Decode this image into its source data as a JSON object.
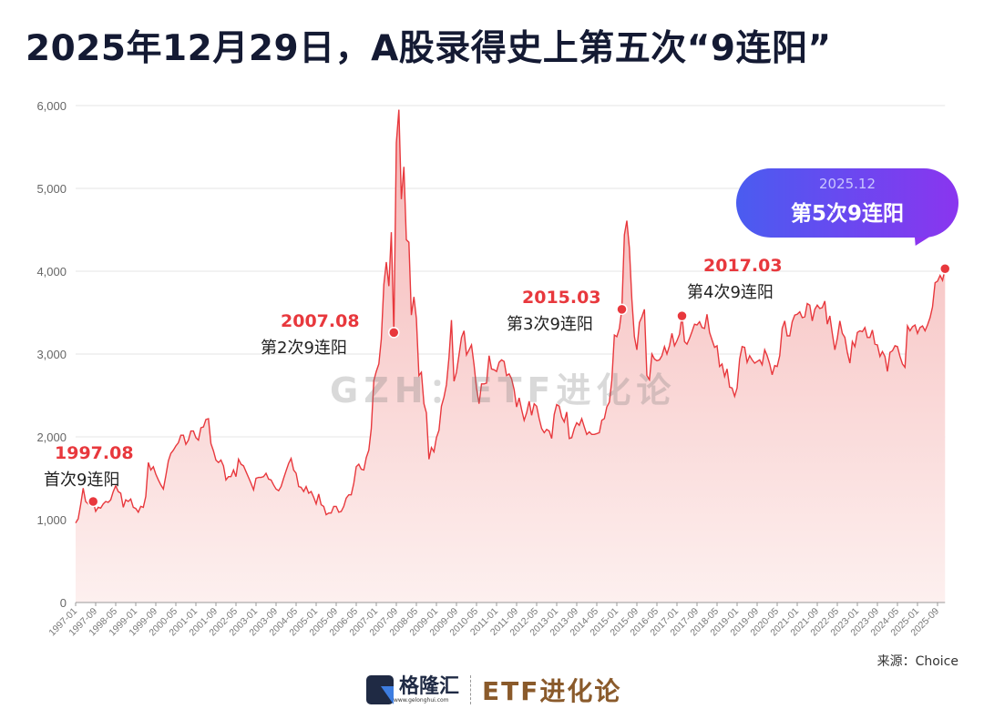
{
  "title": "2025年12月29日，A股录得史上第五次“9连阳”",
  "watermark": "GZH：ETF进化论",
  "source": "来源：Choice",
  "logo": {
    "name": "格隆汇",
    "url": "www.gelonghui.com",
    "brand": "ETF进化论"
  },
  "colors": {
    "line": "#e8383d",
    "area_top": "#f5b5b5",
    "area_bottom": "#fdf0ef",
    "title": "#141a33",
    "bubble_start": "#4a5cf0",
    "bubble_end": "#8a35ef",
    "brand": "#8a5a2b"
  },
  "chart_data": {
    "type": "area",
    "title": "2025年12月29日，A股录得史上第五次“9连阳”",
    "xlabel": "",
    "ylabel": "",
    "ylim": [
      0,
      6000
    ],
    "yticks": [
      "0",
      "1,000",
      "2,000",
      "3,000",
      "4,000",
      "5,000",
      "6,000"
    ],
    "grid": true,
    "x_start": "1997-01",
    "x_end": "2025-12",
    "x_frequency": "monthly",
    "xticks": [
      "1997-01",
      "1997-09",
      "1998-05",
      "1999-01",
      "1999-09",
      "2000-05",
      "2001-01",
      "2001-09",
      "2002-05",
      "2003-01",
      "2003-09",
      "2004-05",
      "2005-01",
      "2005-09",
      "2006-05",
      "2007-01",
      "2007-09",
      "2008-05",
      "2009-01",
      "2009-09",
      "2010-05",
      "2011-01",
      "2011-09",
      "2012-05",
      "2013-01",
      "2013-09",
      "2014-05",
      "2015-01",
      "2015-09",
      "2016-05",
      "2017-01",
      "2017-09",
      "2018-05",
      "2019-01",
      "2019-09",
      "2020-05",
      "2021-01",
      "2021-09",
      "2022-05",
      "2023-01",
      "2023-09",
      "2024-05",
      "2025-01",
      "2025-09"
    ],
    "values": [
      960,
      1010,
      1180,
      1380,
      1220,
      1190,
      1170,
      1220,
      1100,
      1150,
      1140,
      1190,
      1220,
      1210,
      1240,
      1340,
      1410,
      1340,
      1320,
      1150,
      1240,
      1220,
      1250,
      1150,
      1135,
      1090,
      1160,
      1150,
      1280,
      1690,
      1600,
      1640,
      1550,
      1480,
      1420,
      1370,
      1530,
      1710,
      1800,
      1840,
      1890,
      1930,
      2020,
      2020,
      1910,
      1960,
      2070,
      2070,
      1990,
      1960,
      2110,
      2120,
      2210,
      2220,
      1920,
      1830,
      1720,
      1690,
      1720,
      1650,
      1480,
      1520,
      1520,
      1600,
      1520,
      1730,
      1670,
      1650,
      1580,
      1510,
      1440,
      1360,
      1500,
      1510,
      1510,
      1520,
      1560,
      1490,
      1480,
      1420,
      1370,
      1350,
      1400,
      1500,
      1590,
      1680,
      1740,
      1600,
      1560,
      1400,
      1390,
      1340,
      1400,
      1320,
      1340,
      1270,
      1190,
      1310,
      1180,
      1160,
      1060,
      1080,
      1080,
      1160,
      1160,
      1090,
      1100,
      1160,
      1260,
      1300,
      1300,
      1440,
      1640,
      1670,
      1610,
      1600,
      1750,
      1840,
      2100,
      2680,
      2790,
      2880,
      3180,
      3840,
      4110,
      3820,
      4470,
      3260,
      5550,
      5950,
      4870,
      5260,
      4380,
      4350,
      3470,
      3690,
      3430,
      2740,
      2780,
      2400,
      2290,
      1730,
      1870,
      1820,
      1990,
      2080,
      2370,
      2480,
      2630,
      2960,
      3410,
      2670,
      2780,
      2990,
      3200,
      3280,
      2990,
      3050,
      3110,
      2870,
      2590,
      2400,
      2640,
      2640,
      2650,
      2980,
      2820,
      2810,
      2790,
      2900,
      2930,
      2910,
      2740,
      2760,
      2700,
      2570,
      2360,
      2470,
      2330,
      2200,
      2290,
      2430,
      2260,
      2400,
      2370,
      2220,
      2100,
      2050,
      2090,
      2070,
      1980,
      2270,
      2390,
      2370,
      2240,
      2180,
      2300,
      1980,
      1990,
      2100,
      2170,
      2140,
      2220,
      2120,
      2030,
      2060,
      2030,
      2030,
      2040,
      2050,
      2200,
      2220,
      2360,
      2420,
      2680,
      3230,
      3210,
      3310,
      3540,
      4440,
      4610,
      4280,
      3660,
      3210,
      3050,
      3380,
      3450,
      3540,
      2740,
      2690,
      3000,
      2940,
      2920,
      2930,
      2980,
      3090,
      3000,
      3100,
      3250,
      3100,
      3160,
      3240,
      3460,
      3150,
      3120,
      3190,
      3270,
      3360,
      3350,
      3390,
      3320,
      3310,
      3480,
      3260,
      3170,
      3080,
      3100,
      2850,
      2880,
      2730,
      2820,
      2600,
      2590,
      2490,
      2590,
      2940,
      3090,
      3080,
      2900,
      2980,
      2930,
      2890,
      2910,
      2930,
      2870,
      3050,
      2980,
      2880,
      2750,
      2860,
      2850,
      2980,
      3310,
      3400,
      3220,
      3220,
      3390,
      3470,
      3480,
      3510,
      3440,
      3450,
      3610,
      3590,
      3400,
      3540,
      3590,
      3550,
      3560,
      3640,
      3360,
      3460,
      3250,
      3050,
      3190,
      3400,
      3250,
      3200,
      3020,
      2890,
      3150,
      3090,
      3260,
      3280,
      3270,
      3320,
      3200,
      3200,
      3290,
      3120,
      3110,
      2970,
      3030,
      2970,
      2790,
      3020,
      3040,
      3100,
      3090,
      2970,
      2880,
      2840,
      3340,
      3280,
      3330,
      3350,
      3250,
      3320,
      3340,
      3280,
      3350,
      3440,
      3570,
      3860,
      3880,
      3950,
      3890,
      4030
    ],
    "annotations": [
      {
        "date": "1997.08",
        "label": "首次9连阳",
        "month": "1997-08",
        "value": 1220
      },
      {
        "date": "2007.08",
        "label": "第2次9连阳",
        "month": "2007-08",
        "value": 3260
      },
      {
        "date": "2015.03",
        "label": "第3次9连阳",
        "month": "2015-03",
        "value": 3540
      },
      {
        "date": "2017.03",
        "label": "第4次9连阳",
        "month": "2017-03",
        "value": 3460
      },
      {
        "date": "2025.12",
        "label": "第5次9连阳",
        "month": "2025-12",
        "value": 4030
      }
    ]
  }
}
